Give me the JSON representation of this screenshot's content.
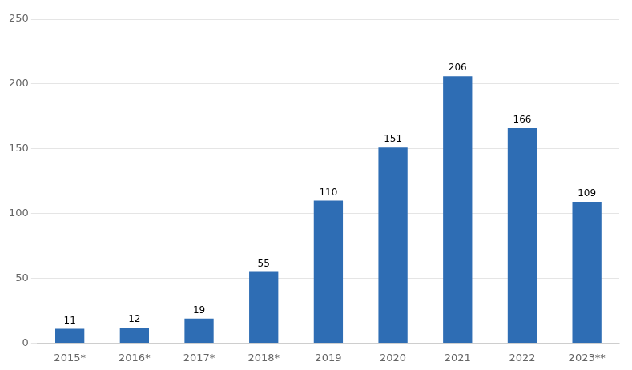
{
  "chart_data": {
    "type": "bar",
    "categories": [
      "2015*",
      "2016*",
      "2017*",
      "2018*",
      "2019",
      "2020",
      "2021",
      "2022",
      "2023**"
    ],
    "values": [
      11,
      12,
      19,
      55,
      110,
      151,
      206,
      166,
      109
    ],
    "color": "#2E6DB4",
    "ylim": [
      0,
      250
    ],
    "yticks": [
      0,
      50,
      100,
      150,
      200,
      250
    ],
    "grid": true,
    "data_labels": true
  }
}
